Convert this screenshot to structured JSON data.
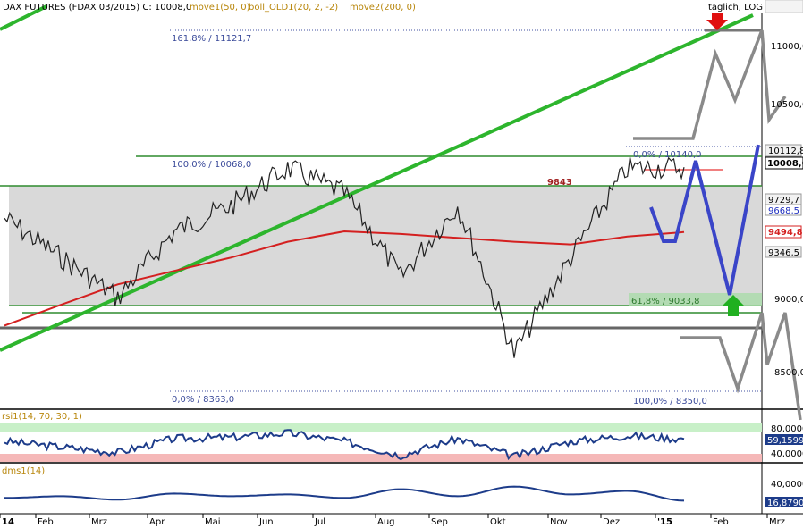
{
  "header": {
    "title": "DAX FUTURES (FDAX 03/2015)  C: 10008,0",
    "studies": [
      {
        "label": "move1(50, 0)",
        "color": "#b8860b"
      },
      {
        "label": "boll_OLD1(20, 2, -2)",
        "color": "#b8860b"
      },
      {
        "label": "move2(200, 0)",
        "color": "#b8860b"
      }
    ],
    "mode": "taglich, LOG"
  },
  "colors": {
    "price": "#222222",
    "ma200": "#d42020",
    "trend": "#2db52d",
    "projection": "#3a45c8",
    "scenario": "#8a8a8a",
    "rsi": "#1d3c8a",
    "dms": "#1d3c8a",
    "box": "#d9d9d9",
    "level_green": "#2e8b2e"
  },
  "annotations": {
    "fib_161": "161,8% / 11121,7",
    "fib_100a": "100,0% / 10068,0",
    "fib_0a": "0,0% / 8363,0",
    "fib_0b": "0,0% / 10140,0",
    "fib_618": "61,8% / 9033,8",
    "fib_100b": "100,0% / 8350,0",
    "level_9843": "9843"
  },
  "price_axis": {
    "ticks": [
      "11000,0",
      "10500,0",
      "9000,0",
      "8500,0"
    ],
    "badges": [
      {
        "label": "10112,8",
        "kind": "plain"
      },
      {
        "label": "10008,0",
        "kind": "current"
      },
      {
        "label": "9729,7",
        "kind": "plain"
      },
      {
        "label": "9668,5",
        "kind": "blue"
      },
      {
        "label": "9494,8",
        "kind": "red"
      },
      {
        "label": "9346,5",
        "kind": "plain"
      }
    ]
  },
  "rsi_panel": {
    "label": "rsi1(14, 70, 30, 1)",
    "ticks": [
      "80,0000",
      "40,0000"
    ],
    "badge": "59,1599"
  },
  "dms_panel": {
    "label": "dms1(14)",
    "ticks": [
      "40,0000"
    ],
    "badge": "16,8790"
  },
  "time_axis": {
    "labels": [
      "14",
      "Feb",
      "Mrz",
      "Apr",
      "Mai",
      "Jun",
      "Jul",
      "Aug",
      "Sep",
      "Okt",
      "Nov",
      "Dez",
      "'15",
      "Feb",
      "Mrz"
    ]
  },
  "chart_data": [
    {
      "type": "line",
      "panel": "price",
      "scale": "log",
      "ylim": [
        8300,
        11300
      ],
      "x": [
        "Jan",
        "Feb",
        "Mrz",
        "Apr",
        "Mai",
        "Jun",
        "Jul",
        "Aug",
        "Sep",
        "Okt",
        "Nov",
        "Dez",
        "Jan"
      ],
      "series": [
        {
          "name": "DAX FUTURES (FDAX 03/2015)",
          "values": [
            9600,
            9300,
            9000,
            9500,
            9700,
            10000,
            9800,
            9150,
            9700,
            8600,
            9300,
            10000,
            10008
          ]
        },
        {
          "name": "move2(200, 0)",
          "values": [
            8800,
            8950,
            9100,
            9200,
            9300,
            9420,
            9500,
            9480,
            9450,
            9420,
            9400,
            9460,
            9494.8
          ]
        }
      ],
      "levels": [
        11121.7,
        10140,
        10068,
        9843,
        9033.8,
        8363,
        8350
      ]
    },
    {
      "type": "line",
      "panel": "rsi1(14, 70, 30, 1)",
      "ylim": [
        20,
        90
      ],
      "bands": [
        70,
        30
      ],
      "series": [
        {
          "name": "rsi1(14, 70, 30, 1)",
          "values": [
            55,
            45,
            35,
            60,
            62,
            70,
            55,
            30,
            60,
            28,
            55,
            65,
            59.16
          ]
        }
      ]
    },
    {
      "type": "line",
      "panel": "dms1(14)",
      "ylim": [
        5,
        50
      ],
      "series": [
        {
          "name": "dms1(14)",
          "values": [
            20,
            22,
            18,
            25,
            22,
            24,
            20,
            30,
            22,
            33,
            24,
            28,
            16.88
          ]
        }
      ]
    }
  ]
}
